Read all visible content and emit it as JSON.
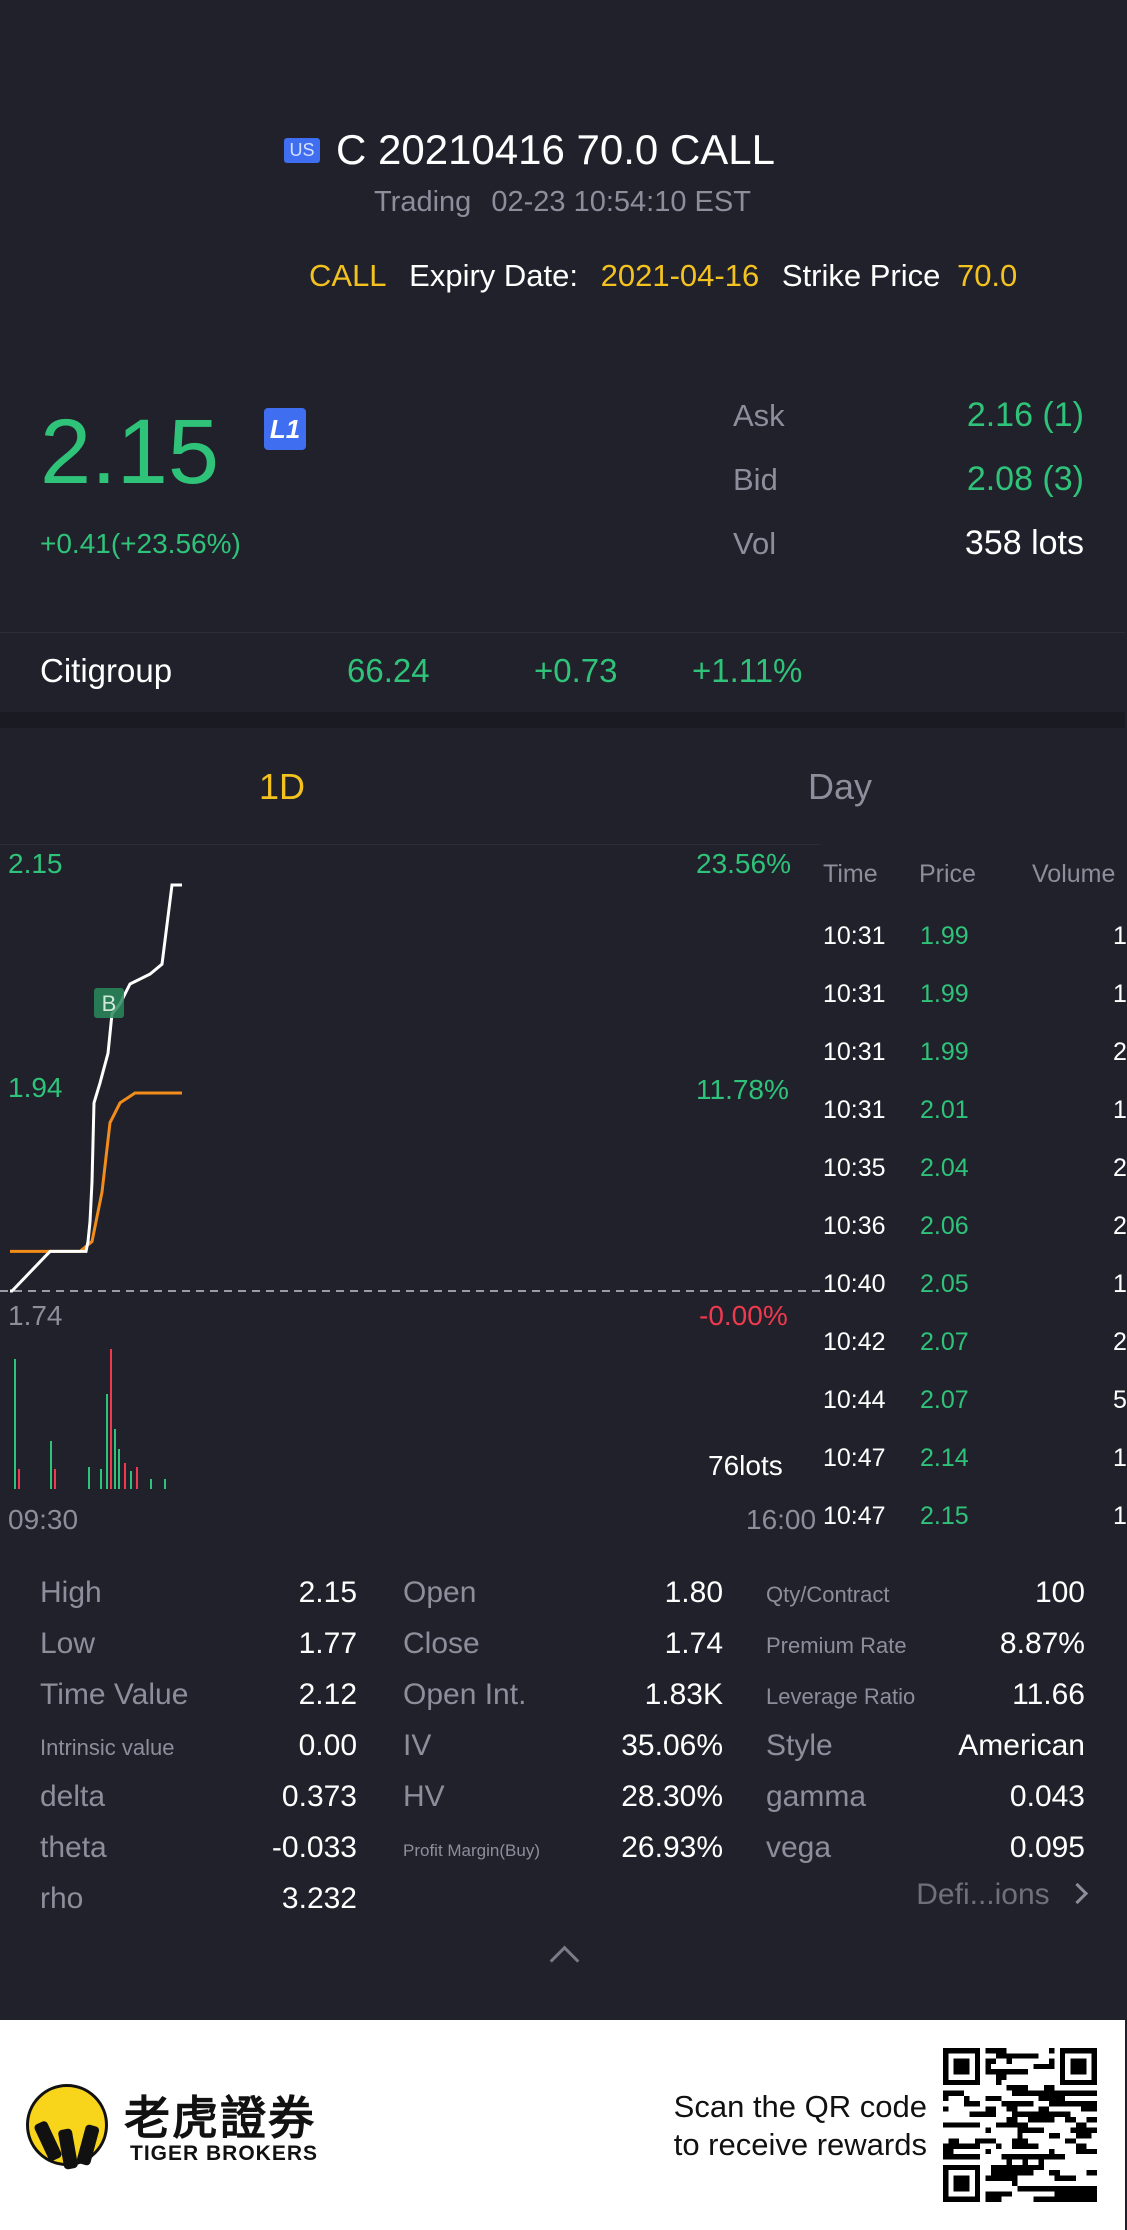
{
  "header": {
    "region_badge": "US",
    "title": "C 20210416 70.0 CALL",
    "status": "Trading",
    "datetime": "02-23 10:54:10 EST",
    "option_type": "CALL",
    "expiry_label": "Expiry Date:",
    "expiry_value": "2021-04-16",
    "strike_label": "Strike Price",
    "strike_value": "70.0"
  },
  "price": {
    "last": "2.15",
    "level_badge": "L1",
    "change": "+0.41(+23.56%)",
    "ask_label": "Ask",
    "ask_value": "2.16 (1)",
    "bid_label": "Bid",
    "bid_value": "2.08 (3)",
    "vol_label": "Vol",
    "vol_value": "358 lots"
  },
  "underlying": {
    "name": "Citigroup",
    "price": "66.24",
    "change": "+0.73",
    "change_pct": "+1.11%"
  },
  "tabs": [
    {
      "label": "1D",
      "active": true
    },
    {
      "label": "Day",
      "active": false
    }
  ],
  "chart": {
    "top_price": "2.15",
    "mid_price": "1.94",
    "base_price": "1.74",
    "top_pct": "23.56%",
    "mid_pct": "11.78%",
    "base_pct": "-0.00%",
    "volume_label": "76lots",
    "start_time": "09:30",
    "end_time": "16:00",
    "marker": "B"
  },
  "chart_data": {
    "type": "line",
    "y_range": [
      1.74,
      2.15
    ],
    "x_range": [
      "09:30",
      "16:00"
    ],
    "series": [
      {
        "values": [
          1.74,
          1.74,
          1.78,
          1.78,
          1.78,
          1.78,
          1.79,
          1.81,
          1.85,
          1.93,
          1.95,
          1.98,
          2.02,
          2.03,
          2.05,
          2.06,
          2.07,
          2.15,
          2.15
        ]
      },
      {
        "values": [
          1.78,
          1.78,
          1.78,
          1.78,
          1.79,
          1.84,
          1.91,
          1.93,
          1.94,
          1.94,
          1.94,
          1.94
        ]
      }
    ],
    "grid": false
  },
  "trades": {
    "headers": [
      "Time",
      "Price",
      "Volume"
    ],
    "rows": [
      {
        "time": "10:31",
        "price": "1.99",
        "volume": "1"
      },
      {
        "time": "10:31",
        "price": "1.99",
        "volume": "1"
      },
      {
        "time": "10:31",
        "price": "1.99",
        "volume": "2"
      },
      {
        "time": "10:31",
        "price": "2.01",
        "volume": "1"
      },
      {
        "time": "10:35",
        "price": "2.04",
        "volume": "2"
      },
      {
        "time": "10:36",
        "price": "2.06",
        "volume": "2"
      },
      {
        "time": "10:40",
        "price": "2.05",
        "volume": "1"
      },
      {
        "time": "10:42",
        "price": "2.07",
        "volume": "2"
      },
      {
        "time": "10:44",
        "price": "2.07",
        "volume": "5"
      },
      {
        "time": "10:47",
        "price": "2.14",
        "volume": "1"
      },
      {
        "time": "10:47",
        "price": "2.15",
        "volume": "1"
      }
    ]
  },
  "stats": {
    "col1": [
      {
        "label": "High",
        "value": "2.15"
      },
      {
        "label": "Low",
        "value": "1.77"
      },
      {
        "label": "Time Value",
        "value": "2.12"
      },
      {
        "label": "Intrinsic value",
        "value": "0.00"
      },
      {
        "label": "delta",
        "value": "0.373"
      },
      {
        "label": "theta",
        "value": "-0.033"
      },
      {
        "label": "rho",
        "value": "3.232"
      }
    ],
    "col2": [
      {
        "label": "Open",
        "value": "1.80"
      },
      {
        "label": "Close",
        "value": "1.74"
      },
      {
        "label": "Open Int.",
        "value": "1.83K"
      },
      {
        "label": "IV",
        "value": "35.06%"
      },
      {
        "label": "HV",
        "value": "28.30%"
      },
      {
        "label": "Profit Margin(Buy)",
        "value": "26.93%"
      }
    ],
    "col3": [
      {
        "label": "Qty/Contract",
        "value": "100"
      },
      {
        "label": "Premium Rate",
        "value": "8.87%"
      },
      {
        "label": "Leverage Ratio",
        "value": "11.66"
      },
      {
        "label": "Style",
        "value": "American"
      },
      {
        "label": "gamma",
        "value": "0.043"
      },
      {
        "label": "vega",
        "value": "0.095"
      }
    ],
    "definitions_link": "Defi...ions"
  },
  "footer": {
    "brand_cn": "老虎證券",
    "brand_en": "TIGER BROKERS",
    "scan_line1": "Scan the QR code",
    "scan_line2": "to receive rewards"
  },
  "colors": {
    "background": "#20212b",
    "up": "#2fc37a",
    "down": "#f0394e",
    "accent": "#f3c21f",
    "badge": "#3f6ef0"
  }
}
